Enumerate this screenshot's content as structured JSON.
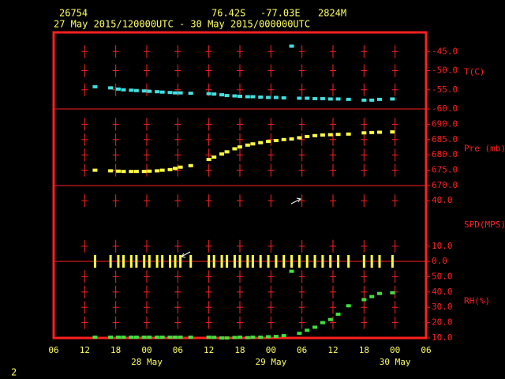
{
  "header": {
    "station": "26754",
    "lat": "76.42S",
    "lon": "-77.03E",
    "elev": "2824M",
    "period": "27 May 2015/120000UTC - 30 May 2015/000000UTC",
    "page": "2"
  },
  "chart_data": [
    {
      "type": "scatter",
      "title": "T(C)",
      "color": "#40e0e0",
      "x": [
        8,
        11,
        12.5,
        13.5,
        15,
        16,
        17.5,
        18.5,
        20,
        21,
        22.5,
        23.5,
        24.5,
        26.5,
        30,
        31,
        32.5,
        33.5,
        35,
        36,
        37.5,
        38.5,
        40,
        41.5,
        43,
        44.5,
        46,
        47.5,
        49,
        50.5,
        52,
        53.5,
        55,
        57,
        60,
        61.5,
        63,
        65.5
      ],
      "values": [
        -54.2,
        -54.5,
        -54.8,
        -55,
        -55.1,
        -55.2,
        -55.3,
        -55.4,
        -55.5,
        -55.6,
        -55.7,
        -55.8,
        -55.8,
        -55.9,
        -56,
        -56.1,
        -56.3,
        -56.5,
        -56.6,
        -56.7,
        -56.8,
        -56.8,
        -56.9,
        -57,
        -57,
        -57.1,
        -43.6,
        -57.2,
        -57.2,
        -57.3,
        -57.3,
        -57.4,
        -57.4,
        -57.5,
        -57.7,
        -57.7,
        -57.5,
        -57.4
      ],
      "ylim": [
        -60,
        -40
      ],
      "yticks": [
        {
          "value": -45,
          "label": "-45.0"
        },
        {
          "value": -50,
          "label": "-50.0"
        },
        {
          "value": -55,
          "label": "-55.0"
        },
        {
          "value": -60,
          "label": "-60.0"
        }
      ]
    },
    {
      "type": "scatter",
      "title": "Pre (mb)",
      "color": "#ffff40",
      "x": [
        8,
        11,
        12.5,
        13.5,
        15,
        16,
        17.5,
        18.5,
        20,
        21,
        22.5,
        23.5,
        24.5,
        26.5,
        30,
        31,
        32.5,
        33.5,
        35,
        36,
        37.5,
        38.5,
        40,
        41.5,
        43,
        44.5,
        46,
        47.5,
        49,
        50.5,
        52,
        53.5,
        55,
        57,
        60,
        61.5,
        63,
        65.5
      ],
      "values": [
        675,
        674.8,
        674.7,
        674.6,
        674.6,
        674.6,
        674.6,
        674.7,
        674.8,
        675,
        675.2,
        675.6,
        676,
        676.5,
        678.5,
        679.3,
        680.3,
        681,
        682,
        682.6,
        683.2,
        683.6,
        684,
        684.4,
        684.7,
        685,
        685.2,
        685.6,
        686,
        686.3,
        686.5,
        686.6,
        686.7,
        686.8,
        687.2,
        687.3,
        687.4,
        687.5
      ],
      "ylim": [
        670,
        695
      ],
      "yticks": [
        {
          "value": 690,
          "label": "690.0"
        },
        {
          "value": 685,
          "label": "685.0"
        },
        {
          "value": 680,
          "label": "680.0"
        },
        {
          "value": 675,
          "label": "675.0"
        },
        {
          "value": 670,
          "label": "670.0"
        }
      ]
    },
    {
      "type": "bar",
      "title": "SPD(MPS)",
      "color": "#ffff40",
      "x": [
        8,
        11,
        12.5,
        13.5,
        15,
        16,
        17.5,
        18.5,
        20,
        21,
        22.5,
        23.5,
        24.5,
        26.5,
        30,
        31,
        32.5,
        33.5,
        35,
        36,
        37.5,
        38.5,
        40,
        41.5,
        43,
        44.5,
        46,
        47.5,
        49,
        50.5,
        52,
        53.5,
        55,
        57,
        60,
        61.5,
        63,
        65.5
      ],
      "values": [
        0,
        0,
        0,
        0,
        0,
        0,
        0,
        0,
        0,
        0,
        0,
        0,
        0,
        0,
        0,
        0,
        0,
        0,
        0,
        0,
        0,
        0,
        0,
        0,
        0,
        0,
        0,
        0,
        0,
        0,
        0,
        0,
        0,
        0,
        0,
        0,
        0,
        0
      ],
      "ylim": [
        0,
        50
      ],
      "yticks": [
        {
          "value": 40,
          "label": "40.0"
        },
        {
          "value": 10,
          "label": "10.0"
        },
        {
          "value": 0,
          "label": "0.0"
        }
      ]
    },
    {
      "type": "scatter",
      "title": "RH(%)",
      "color": "#40e040",
      "x": [
        8,
        11,
        12.5,
        13.5,
        15,
        16,
        17.5,
        18.5,
        20,
        21,
        22.5,
        23.5,
        24.5,
        26.5,
        30,
        31,
        32.5,
        33.5,
        35,
        36,
        37.5,
        38.5,
        40,
        41.5,
        43,
        44.5,
        46,
        47.5,
        49,
        50.5,
        52,
        53.5,
        55,
        57,
        60,
        61.5,
        63,
        65.5
      ],
      "values": [
        10.5,
        10.5,
        10.5,
        10.5,
        10.5,
        10.5,
        10.5,
        10.5,
        10.5,
        10.5,
        10.5,
        10.5,
        10.5,
        10.5,
        10.5,
        10.4,
        10,
        10,
        10.3,
        10.5,
        10.2,
        10.5,
        10.5,
        10.8,
        11,
        11.5,
        53.5,
        13,
        15,
        17,
        20,
        22,
        25.5,
        31,
        35,
        37,
        39,
        39.5
      ],
      "ylim": [
        10,
        60
      ],
      "yticks": [
        {
          "value": 50,
          "label": "50.0"
        },
        {
          "value": 40,
          "label": "40.0"
        },
        {
          "value": 30,
          "label": "30.0"
        },
        {
          "value": 20,
          "label": "20.0"
        },
        {
          "value": 10,
          "label": "10.0"
        }
      ],
      "xlim": [
        0,
        72
      ],
      "xticks": [
        {
          "value": 0,
          "label": "06"
        },
        {
          "value": 6,
          "label": "12"
        },
        {
          "value": 12,
          "label": "18"
        },
        {
          "value": 18,
          "label": "00"
        },
        {
          "value": 24,
          "label": "06"
        },
        {
          "value": 30,
          "label": "12"
        },
        {
          "value": 36,
          "label": "18"
        },
        {
          "value": 42,
          "label": "00"
        },
        {
          "value": 48,
          "label": "06"
        },
        {
          "value": 54,
          "label": "12"
        },
        {
          "value": 60,
          "label": "18"
        },
        {
          "value": 66,
          "label": "00"
        },
        {
          "value": 72,
          "label": "06"
        }
      ],
      "xdates": [
        {
          "value": 18,
          "label": "28 May"
        },
        {
          "value": 42,
          "label": "29 May"
        },
        {
          "value": 66,
          "label": "30 May"
        }
      ]
    }
  ]
}
